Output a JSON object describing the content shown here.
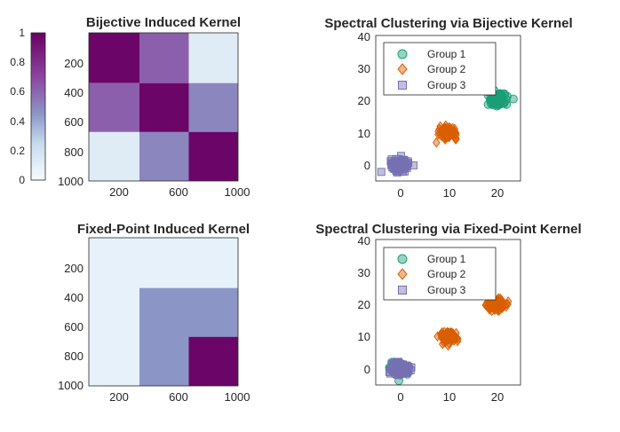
{
  "chart_data": [
    {
      "type": "heatmap",
      "title": "Bijective Induced Kernel",
      "y_ticks": [
        "200",
        "400",
        "600",
        "800",
        "1000"
      ],
      "x_ticks": [
        "200",
        "600",
        "1000"
      ],
      "x_range": [
        1,
        1000
      ],
      "y_range": [
        1,
        1000
      ],
      "blocks": [
        {
          "rows": [
            1,
            340
          ],
          "cols": [
            1,
            340
          ],
          "value": 0.98
        },
        {
          "rows": [
            1,
            340
          ],
          "cols": [
            340,
            670
          ],
          "value": 0.62
        },
        {
          "rows": [
            1,
            340
          ],
          "cols": [
            670,
            1000
          ],
          "value": 0.12
        },
        {
          "rows": [
            340,
            670
          ],
          "cols": [
            1,
            340
          ],
          "value": 0.62
        },
        {
          "rows": [
            340,
            670
          ],
          "cols": [
            340,
            670
          ],
          "value": 0.98
        },
        {
          "rows": [
            340,
            670
          ],
          "cols": [
            670,
            1000
          ],
          "value": 0.5
        },
        {
          "rows": [
            670,
            1000
          ],
          "cols": [
            1,
            340
          ],
          "value": 0.12
        },
        {
          "rows": [
            670,
            1000
          ],
          "cols": [
            340,
            670
          ],
          "value": 0.5
        },
        {
          "rows": [
            670,
            1000
          ],
          "cols": [
            670,
            1000
          ],
          "value": 0.98
        }
      ],
      "colorbar": {
        "range": [
          0,
          1
        ],
        "ticks": [
          "0",
          "0.2",
          "0.4",
          "0.6",
          "0.8",
          "1"
        ]
      }
    },
    {
      "type": "scatter",
      "title": "Spectral Clustering via Bijective Kernel",
      "xlim": [
        -5,
        25
      ],
      "ylim": [
        -5,
        40
      ],
      "x_ticks": [
        "0",
        "10",
        "20"
      ],
      "y_ticks": [
        "0",
        "10",
        "20",
        "30",
        "40"
      ],
      "legend": [
        "Group 1",
        "Group 2",
        "Group 3"
      ],
      "legend_position": "top-left",
      "series": [
        {
          "name": "Group 1",
          "marker": "circle",
          "color": "#1b9e77",
          "centroids": [
            [
              20,
              20
            ]
          ]
        },
        {
          "name": "Group 2",
          "marker": "diamond",
          "color": "#d95f02",
          "centroids": [
            [
              10,
              10
            ]
          ]
        },
        {
          "name": "Group 3",
          "marker": "square",
          "color": "#7570b3",
          "centroids": [
            [
              0,
              0
            ]
          ]
        }
      ]
    },
    {
      "type": "heatmap",
      "title": "Fixed-Point Induced Kernel",
      "y_ticks": [
        "200",
        "400",
        "600",
        "800",
        "1000"
      ],
      "x_ticks": [
        "200",
        "600",
        "1000"
      ],
      "x_range": [
        1,
        1000
      ],
      "y_range": [
        1,
        1000
      ],
      "blocks": [
        {
          "rows": [
            1,
            1000
          ],
          "cols": [
            1,
            1000
          ],
          "value": 0.08
        },
        {
          "rows": [
            340,
            1000
          ],
          "cols": [
            340,
            1000
          ],
          "value": 0.45
        },
        {
          "rows": [
            670,
            1000
          ],
          "cols": [
            670,
            1000
          ],
          "value": 0.98
        }
      ]
    },
    {
      "type": "scatter",
      "title": "Spectral Clustering via Fixed-Point Kernel",
      "xlim": [
        -5,
        25
      ],
      "ylim": [
        -5,
        40
      ],
      "x_ticks": [
        "0",
        "10",
        "20"
      ],
      "y_ticks": [
        "0",
        "10",
        "20",
        "30",
        "40"
      ],
      "legend": [
        "Group 1",
        "Group 2",
        "Group 3"
      ],
      "legend_position": "top-left",
      "series": [
        {
          "name": "Group 1",
          "marker": "circle",
          "color": "#1b9e77",
          "centroids": [
            [
              0,
              0
            ]
          ]
        },
        {
          "name": "Group 2",
          "marker": "diamond",
          "color": "#d95f02",
          "centroids": [
            [
              10,
              10
            ],
            [
              20,
              20
            ]
          ]
        },
        {
          "name": "Group 3",
          "marker": "square",
          "color": "#7570b3",
          "centroids": [
            [
              0,
              0
            ]
          ]
        }
      ]
    }
  ]
}
